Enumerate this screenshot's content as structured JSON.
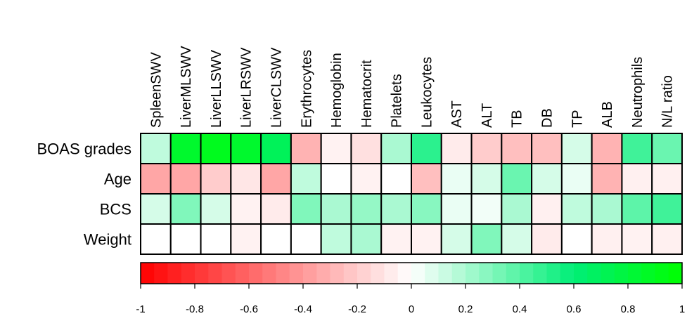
{
  "chart_data": {
    "type": "heatmap",
    "columns": [
      "SpleenSWV",
      "LiverMLSWV",
      "LiverLLSWV",
      "LiverLRSWV",
      "LiverCLSWV",
      "Erythrocytes",
      "Hemoglobin",
      "Hematocrit",
      "Platelets",
      "Leukocytes",
      "AST",
      "ALT",
      "TB",
      "DB",
      "TP",
      "ALB",
      "Neutrophils",
      "N/L ratio"
    ],
    "rows": [
      "BOAS grades",
      "Age",
      "BCS",
      "Weight"
    ],
    "values": [
      [
        0.15,
        0.85,
        0.9,
        0.85,
        0.7,
        -0.3,
        -0.05,
        -0.12,
        0.2,
        0.5,
        -0.08,
        -0.2,
        -0.25,
        -0.25,
        0.1,
        -0.3,
        0.45,
        0.35
      ],
      [
        -0.35,
        -0.35,
        -0.2,
        -0.1,
        -0.35,
        0.15,
        0.0,
        -0.05,
        0.0,
        -0.25,
        0.05,
        0.1,
        0.35,
        0.1,
        0.05,
        -0.3,
        -0.06,
        -0.06
      ],
      [
        0.1,
        0.3,
        0.1,
        -0.05,
        -0.08,
        0.3,
        0.2,
        0.25,
        0.2,
        0.28,
        0.05,
        0.03,
        0.2,
        -0.06,
        0.15,
        0.2,
        0.38,
        0.45
      ],
      [
        0.0,
        0.0,
        0.0,
        -0.05,
        0.0,
        0.0,
        0.15,
        0.2,
        -0.05,
        -0.05,
        0.1,
        0.3,
        0.1,
        -0.08,
        0.0,
        -0.06,
        -0.05,
        -0.06
      ]
    ],
    "colorbar": {
      "ticks": [
        "-1",
        "-0.8",
        "-0.6",
        "-0.4",
        "-0.2",
        "0",
        "0.2",
        "0.4",
        "0.6",
        "0.8",
        "1"
      ],
      "range": [
        -1,
        1
      ],
      "steps": 40
    },
    "colors": {
      "negative": "#ff0000",
      "neutral": "#ffffff",
      "positive": "#00ff00",
      "mid_positive": "#00ee77"
    },
    "grid": true
  }
}
